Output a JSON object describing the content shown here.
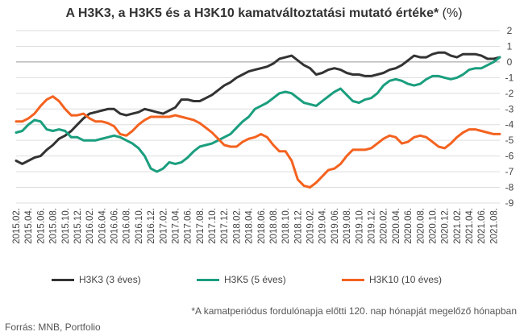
{
  "title": {
    "main": "A H3K3, a H3K5 és a H3K10 kamatváltoztatási mutató értéke*",
    "unit": " (%)"
  },
  "footnote": "*A kamatperiódus fordulónapja előtti 120. nap hónapját megelőző hónapban",
  "source": "Forrás: MNB, Portfolio",
  "colors": {
    "H3K3": "#333333",
    "H3K5": "#1a9e7e",
    "H3K10": "#f4621f",
    "grid": "#dddddd",
    "zero": "#999999"
  },
  "chart_data": {
    "type": "line",
    "ylim": [
      -9,
      2
    ],
    "yticks": [
      2,
      1,
      0,
      -1,
      -2,
      -3,
      -4,
      -5,
      -6,
      -7,
      -8,
      -9
    ],
    "grid": true,
    "legend_position": "bottom",
    "x": [
      "2015.02",
      "2015.03",
      "2015.04",
      "2015.05",
      "2015.06",
      "2015.07",
      "2015.08",
      "2015.09",
      "2015.10",
      "2015.11",
      "2015.12",
      "2016.01",
      "2016.02",
      "2016.03",
      "2016.04",
      "2016.05",
      "2016.06",
      "2016.07",
      "2016.08",
      "2016.09",
      "2016.10",
      "2016.11",
      "2016.12",
      "2017.01",
      "2017.02",
      "2017.03",
      "2017.04",
      "2017.05",
      "2017.06",
      "2017.07",
      "2017.08",
      "2017.09",
      "2017.10",
      "2017.11",
      "2017.12",
      "2018.01",
      "2018.02",
      "2018.03",
      "2018.04",
      "2018.05",
      "2018.06",
      "2018.07",
      "2018.08",
      "2018.09",
      "2018.10",
      "2018.11",
      "2018.12",
      "2019.01",
      "2019.02",
      "2019.03",
      "2019.04",
      "2019.05",
      "2019.06",
      "2019.07",
      "2019.08",
      "2019.09",
      "2019.10",
      "2019.11",
      "2019.12",
      "2020.01",
      "2020.02",
      "2020.03",
      "2020.04",
      "2020.05",
      "2020.06",
      "2020.07",
      "2020.08",
      "2020.09",
      "2020.10",
      "2020.11",
      "2020.12",
      "2021.01",
      "2021.02",
      "2021.03",
      "2021.04",
      "2021.05",
      "2021.06",
      "2021.07",
      "2021.08",
      "2021.09"
    ],
    "tick_labels": [
      "2015.02.",
      "2015.04.",
      "2015.06.",
      "2015.08.",
      "2015.10.",
      "2015.12.",
      "2016.02.",
      "2016.04.",
      "2016.06.",
      "2016.08.",
      "2016.10.",
      "2016.12.",
      "2017.02.",
      "2017.04.",
      "2017.06.",
      "2017.08.",
      "2017.10.",
      "2017.12.",
      "2018.02.",
      "2018.04.",
      "2018.06.",
      "2018.08.",
      "2018.10.",
      "2018.12.",
      "2019.02.",
      "2019.04.",
      "2019.06.",
      "2019.08.",
      "2019.10.",
      "2019.12.",
      "2020.02.",
      "2020.04.",
      "2020.06.",
      "2020.08.",
      "2020.10.",
      "2020.12.",
      "2021.02.",
      "2021.04.",
      "2021.06.",
      "2021.08."
    ],
    "series": [
      {
        "key": "H3K3",
        "name": "H3K3 (3 éves)",
        "values": [
          -6.3,
          -6.5,
          -6.3,
          -6.1,
          -6.0,
          -5.6,
          -5.3,
          -4.9,
          -4.7,
          -4.4,
          -4.0,
          -3.6,
          -3.3,
          -3.2,
          -3.1,
          -3.0,
          -3.0,
          -3.3,
          -3.4,
          -3.3,
          -3.2,
          -3.0,
          -3.1,
          -3.2,
          -3.3,
          -3.1,
          -2.9,
          -2.4,
          -2.4,
          -2.5,
          -2.5,
          -2.3,
          -2.1,
          -1.8,
          -1.5,
          -1.3,
          -1.0,
          -0.8,
          -0.6,
          -0.5,
          -0.4,
          -0.3,
          -0.1,
          0.2,
          0.3,
          0.4,
          0.1,
          -0.2,
          -0.4,
          -0.8,
          -0.7,
          -0.5,
          -0.4,
          -0.5,
          -0.7,
          -0.8,
          -0.8,
          -0.9,
          -0.9,
          -0.8,
          -0.7,
          -0.5,
          -0.4,
          -0.2,
          0.1,
          0.4,
          0.3,
          0.3,
          0.5,
          0.6,
          0.6,
          0.4,
          0.3,
          0.5,
          0.5,
          0.5,
          0.4,
          0.2,
          0.2,
          0.3
        ]
      },
      {
        "key": "H3K5",
        "name": "H3K5 (5 éves)",
        "values": [
          -4.5,
          -4.4,
          -4.0,
          -3.7,
          -3.8,
          -4.3,
          -4.4,
          -4.3,
          -4.4,
          -4.8,
          -4.8,
          -5.0,
          -5.0,
          -5.0,
          -4.9,
          -4.8,
          -4.7,
          -4.8,
          -5.0,
          -5.2,
          -5.5,
          -6.0,
          -6.8,
          -7.0,
          -6.8,
          -6.4,
          -6.5,
          -6.4,
          -6.1,
          -5.7,
          -5.4,
          -5.3,
          -5.2,
          -5.0,
          -4.8,
          -4.6,
          -4.2,
          -3.8,
          -3.5,
          -3.0,
          -2.8,
          -2.6,
          -2.3,
          -2.0,
          -1.9,
          -2.0,
          -2.3,
          -2.6,
          -2.7,
          -2.8,
          -2.5,
          -2.2,
          -1.9,
          -1.7,
          -2.1,
          -2.5,
          -2.6,
          -2.4,
          -2.3,
          -2.0,
          -1.5,
          -1.2,
          -1.1,
          -1.2,
          -1.4,
          -1.5,
          -1.4,
          -1.1,
          -0.9,
          -0.9,
          -1.0,
          -1.1,
          -1.0,
          -0.8,
          -0.5,
          -0.4,
          -0.4,
          -0.2,
          0.0,
          0.3
        ]
      },
      {
        "key": "H3K10",
        "name": "H3K10 (10 éves)",
        "values": [
          -3.8,
          -3.8,
          -3.6,
          -3.3,
          -2.8,
          -2.4,
          -2.2,
          -2.5,
          -3.0,
          -3.4,
          -3.4,
          -3.3,
          -3.6,
          -3.8,
          -3.8,
          -3.9,
          -4.1,
          -4.6,
          -4.7,
          -4.4,
          -4.0,
          -3.7,
          -3.5,
          -3.5,
          -3.5,
          -3.5,
          -3.4,
          -3.5,
          -3.6,
          -3.7,
          -3.9,
          -4.2,
          -4.5,
          -4.9,
          -5.3,
          -5.4,
          -5.4,
          -5.1,
          -4.9,
          -4.8,
          -4.6,
          -4.8,
          -5.3,
          -5.7,
          -5.7,
          -6.3,
          -7.5,
          -7.9,
          -8.0,
          -7.7,
          -7.3,
          -6.9,
          -6.8,
          -6.5,
          -6.0,
          -5.6,
          -5.6,
          -5.6,
          -5.5,
          -5.2,
          -4.9,
          -4.7,
          -4.8,
          -5.2,
          -5.1,
          -4.8,
          -4.7,
          -4.8,
          -5.1,
          -5.4,
          -5.5,
          -5.2,
          -4.8,
          -4.5,
          -4.3,
          -4.3,
          -4.4,
          -4.5,
          -4.6,
          -4.6
        ]
      }
    ]
  }
}
